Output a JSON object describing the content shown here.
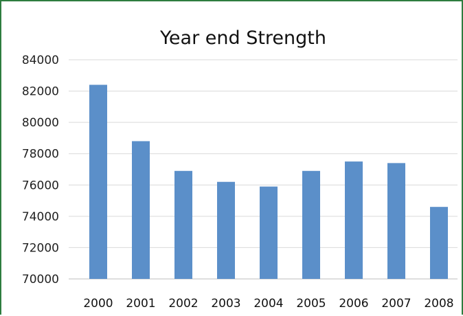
{
  "frame_color": "#2e7d3f",
  "chart_data": {
    "type": "bar",
    "title": "Year end Strength",
    "xlabel": "",
    "ylabel": "",
    "categories": [
      "2000",
      "2001",
      "2002",
      "2003",
      "2004",
      "2005",
      "2006",
      "2007",
      "2008"
    ],
    "values": [
      82400,
      78800,
      76900,
      76200,
      75900,
      76900,
      77500,
      77400,
      74600
    ],
    "ylim": [
      70000,
      84000
    ],
    "yticks": [
      84000,
      82000,
      80000,
      78000,
      76000,
      74000,
      72000,
      70000
    ],
    "grid": true,
    "bar_color": "#5b8fc9",
    "grid_color": "#d9d9d9",
    "legend": "none"
  }
}
